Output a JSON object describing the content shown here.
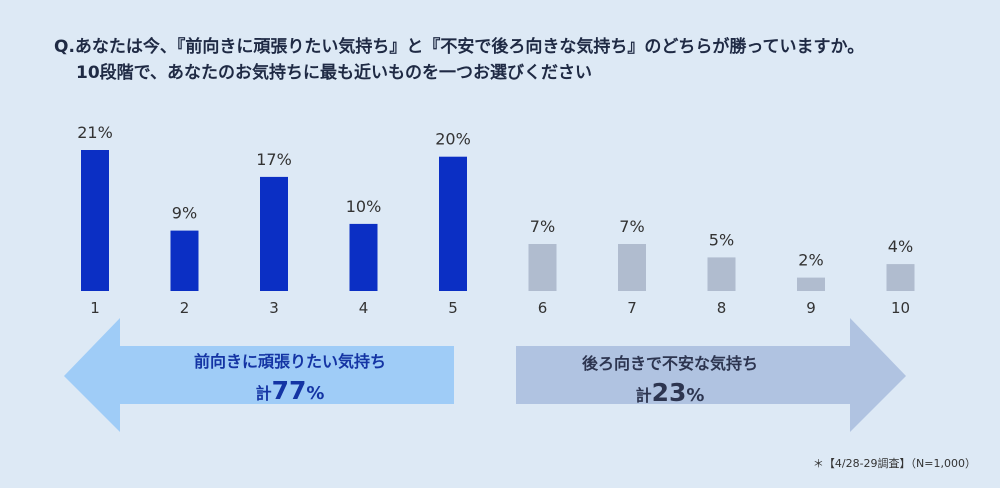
{
  "title": {
    "line1": "Q.あなたは今、『前向きに頑張りたい気持ち』と『不安で後ろ向きな気持ち』のどちらが勝っていますか。",
    "line2": "10段階で、あなたのお気持ちに最も近いものを一つお選びください"
  },
  "chart_data": {
    "type": "bar",
    "categories": [
      "1",
      "2",
      "3",
      "4",
      "5",
      "6",
      "7",
      "8",
      "9",
      "10"
    ],
    "values": [
      21,
      9,
      17,
      10,
      20,
      7,
      7,
      5,
      2,
      4
    ],
    "data_labels": [
      "21%",
      "9%",
      "17%",
      "10%",
      "20%",
      "7%",
      "7%",
      "5%",
      "2%",
      "4%"
    ],
    "colors": [
      "#0b2fc4",
      "#0b2fc4",
      "#0b2fc4",
      "#0b2fc4",
      "#0b2fc4",
      "#b0bccf",
      "#b0bccf",
      "#b0bccf",
      "#b0bccf",
      "#b0bccf"
    ],
    "ylim": [
      0,
      21
    ],
    "grid": false
  },
  "groups": {
    "positive": {
      "label": "前向きに頑張りたい気持ち",
      "total_prefix": "計",
      "total_value": "77",
      "total_unit": "%",
      "color": "#1434a4",
      "arrow_color": "#9fccf7"
    },
    "negative": {
      "label": "後ろ向きで不安な気持ち",
      "total_prefix": "計",
      "total_value": "23",
      "total_unit": "%",
      "color": "#2d3550",
      "arrow_color": "#b0c3e1"
    }
  },
  "note": "＊【4/28-29調査】（N=1,000）"
}
